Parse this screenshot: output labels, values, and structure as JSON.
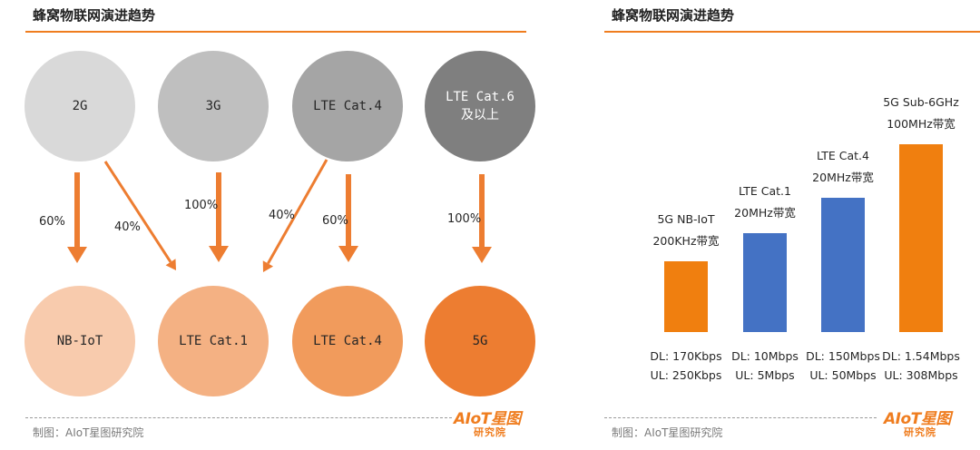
{
  "left": {
    "title": "蜂窝物联网演进趋势",
    "credit": "制图：AIoT星图研究院",
    "logo": {
      "mark": "AIoT星图",
      "sub": "研究院"
    },
    "source_nodes": [
      {
        "label": "2G",
        "color": "#d9d9d9"
      },
      {
        "label": "3G",
        "color": "#bfbfbf"
      },
      {
        "label": "LTE Cat.4",
        "color": "#a5a5a5"
      },
      {
        "label": "LTE Cat.6\n及以上",
        "color": "#7f7f7f"
      }
    ],
    "target_nodes": [
      {
        "label": "NB-IoT",
        "color": "#f8cbad"
      },
      {
        "label": "LTE Cat.1",
        "color": "#f4b183"
      },
      {
        "label": "LTE Cat.4",
        "color": "#f19b5c"
      },
      {
        "label": "5G",
        "color": "#ed7d31"
      }
    ],
    "arrow_color": "#ed7d31",
    "transitions": [
      {
        "from": "2G",
        "to": "NB-IoT",
        "percent": "60%"
      },
      {
        "from": "2G",
        "to": "LTE Cat.1",
        "percent": "40%"
      },
      {
        "from": "3G",
        "to": "LTE Cat.1",
        "percent": "100%"
      },
      {
        "from": "LTE Cat.4",
        "to": "LTE Cat.1",
        "percent": "40%"
      },
      {
        "from": "LTE Cat.4",
        "to": "LTE Cat.4",
        "percent": "60%"
      },
      {
        "from": "LTE Cat.6\n及以上",
        "to": "5G",
        "percent": "100%"
      }
    ]
  },
  "right": {
    "title": "蜂窝物联网演进趋势",
    "credit": "制图：AIoT星图研究院",
    "logo": {
      "mark": "AIoT星图",
      "sub": "研究院"
    },
    "bars": [
      {
        "name": "5G NB-IoT",
        "bandwidth": "200KHz带宽",
        "dl": "DL: 170Kbps",
        "ul": "UL: 250Kbps",
        "level": 1,
        "color": "#f07f0f"
      },
      {
        "name": "LTE Cat.1",
        "bandwidth": "20MHz带宽",
        "dl": "DL: 10Mbps",
        "ul": "UL: 5Mbps",
        "level": 1.4,
        "color": "#4472c4"
      },
      {
        "name": "LTE Cat.4",
        "bandwidth": "20MHz带宽",
        "dl": "DL: 150Mbps",
        "ul": "UL: 50Mbps",
        "level": 1.9,
        "color": "#4472c4"
      },
      {
        "name": "5G Sub-6GHz",
        "bandwidth": "100MHz带宽",
        "dl": "DL: 1.54Mbps",
        "ul": "UL: 308Mbps",
        "level": 2.65,
        "color": "#f07f0f"
      }
    ]
  }
}
